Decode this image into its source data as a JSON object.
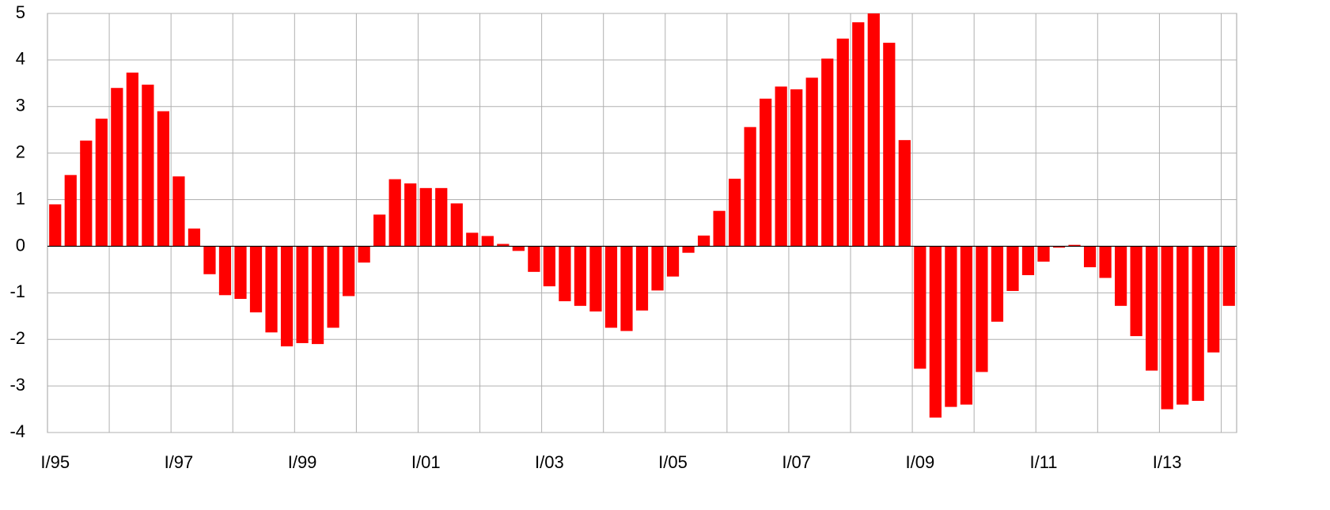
{
  "chart_data": {
    "type": "bar",
    "color": "#ff0000",
    "grid": true,
    "categories": [
      "I/95",
      null,
      null,
      null,
      null,
      null,
      null,
      null,
      "I/97",
      null,
      null,
      null,
      null,
      null,
      null,
      null,
      "I/99",
      null,
      null,
      null,
      null,
      null,
      null,
      null,
      "I/01",
      null,
      null,
      null,
      null,
      null,
      null,
      null,
      "I/03",
      null,
      null,
      null,
      null,
      null,
      null,
      null,
      "I/05",
      null,
      null,
      null,
      null,
      null,
      null,
      null,
      "I/07",
      null,
      null,
      null,
      null,
      null,
      null,
      null,
      "I/09",
      null,
      null,
      null,
      null,
      null,
      null,
      null,
      "I/11",
      null,
      null,
      null,
      null,
      null,
      null,
      null,
      "I/13",
      null,
      null,
      null,
      null
    ],
    "values": [
      0.9,
      1.53,
      2.27,
      2.74,
      3.4,
      3.73,
      3.47,
      2.9,
      1.5,
      0.38,
      -0.6,
      -1.05,
      -1.13,
      -1.42,
      -1.85,
      -2.15,
      -2.08,
      -2.1,
      -1.75,
      -1.07,
      -0.35,
      0.68,
      1.44,
      1.35,
      1.25,
      1.25,
      0.92,
      0.29,
      0.22,
      0.05,
      -0.1,
      -0.55,
      -0.86,
      -1.18,
      -1.28,
      -1.4,
      -1.75,
      -1.82,
      -1.38,
      -0.95,
      -0.65,
      -0.14,
      0.23,
      0.76,
      1.45,
      2.56,
      3.17,
      3.43,
      3.37,
      3.62,
      4.03,
      4.46,
      4.81,
      5.0,
      4.37,
      2.28,
      -2.63,
      -3.68,
      -3.45,
      -3.4,
      -2.7,
      -1.62,
      -0.96,
      -0.62,
      -0.33,
      -0.03,
      0.03,
      -0.45,
      -0.68,
      -1.28,
      -1.93,
      -2.67,
      -3.5,
      -3.4,
      -3.32,
      -2.28,
      -1.28
    ],
    "ylim": [
      -4,
      5
    ],
    "yticks": [
      -4,
      -3,
      -2,
      -1,
      0,
      1,
      2,
      3,
      4,
      5
    ]
  }
}
